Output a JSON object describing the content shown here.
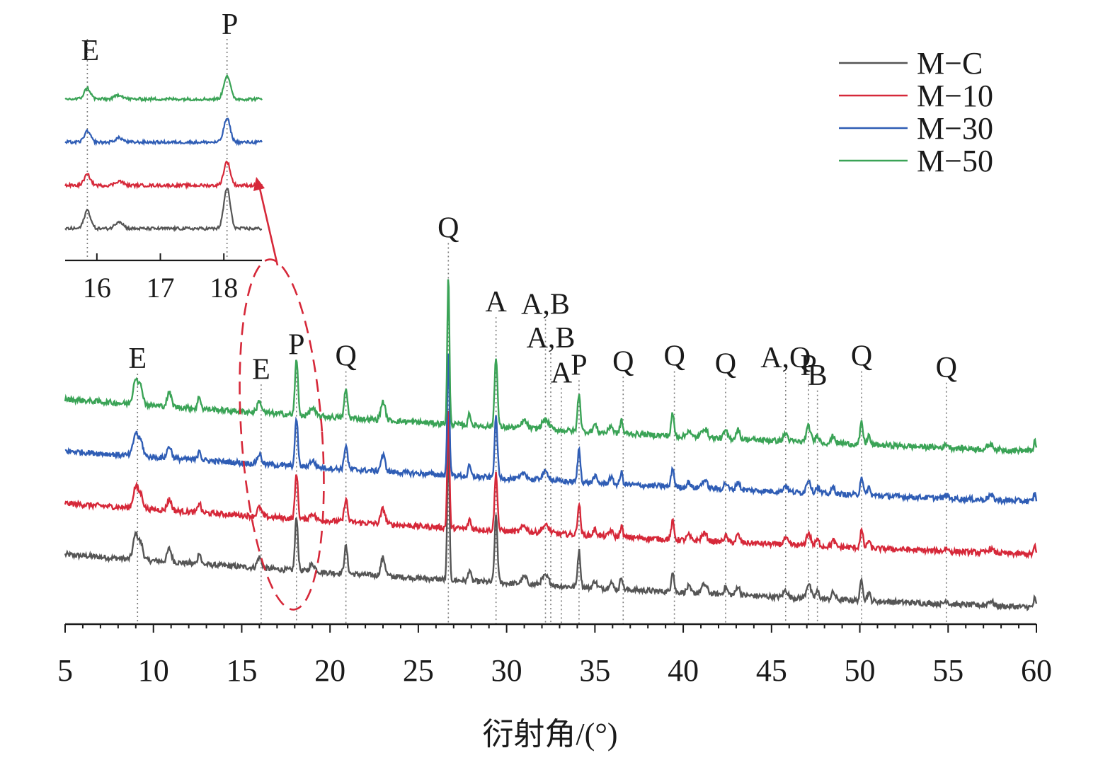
{
  "chart_data": {
    "type": "line",
    "title": "",
    "xlabel": "衍射角/(°)",
    "ylabel": "",
    "xlim": [
      5,
      60
    ],
    "x_ticks": [
      "5",
      "10",
      "15",
      "20",
      "25",
      "30",
      "35",
      "40",
      "45",
      "50",
      "55",
      "60"
    ],
    "legend": {
      "position": "top-right",
      "entries": [
        "M−C",
        "M−10",
        "M−30",
        "M−50"
      ]
    },
    "series": [
      {
        "name": "M−C",
        "color": "#555555",
        "baseline_start": 0.9,
        "baseline_end": 0.02,
        "peak_scale": 1.0
      },
      {
        "name": "M−10",
        "color": "#d62839",
        "baseline_start": 1.75,
        "baseline_end": 0.9,
        "peak_scale": 0.85
      },
      {
        "name": "M−30",
        "color": "#2f5db5",
        "baseline_start": 2.62,
        "baseline_end": 1.78,
        "peak_scale": 0.9
      },
      {
        "name": "M−50",
        "color": "#3aa356",
        "baseline_start": 3.48,
        "baseline_end": 2.62,
        "peak_scale": 1.05
      }
    ],
    "peaks": [
      {
        "x": 9.0,
        "h": 0.42,
        "w": 0.14
      },
      {
        "x": 9.3,
        "h": 0.25,
        "w": 0.12
      },
      {
        "x": 10.9,
        "h": 0.22,
        "w": 0.12
      },
      {
        "x": 12.6,
        "h": 0.2,
        "w": 0.08
      },
      {
        "x": 16.0,
        "h": 0.18,
        "w": 0.12
      },
      {
        "x": 18.1,
        "h": 0.9,
        "w": 0.08
      },
      {
        "x": 19.0,
        "h": 0.12,
        "w": 0.15
      },
      {
        "x": 20.9,
        "h": 0.45,
        "w": 0.09
      },
      {
        "x": 23.0,
        "h": 0.3,
        "w": 0.12
      },
      {
        "x": 26.7,
        "h": 2.35,
        "w": 0.06
      },
      {
        "x": 27.9,
        "h": 0.2,
        "w": 0.07
      },
      {
        "x": 29.4,
        "h": 1.12,
        "w": 0.08
      },
      {
        "x": 31.0,
        "h": 0.12,
        "w": 0.15
      },
      {
        "x": 32.2,
        "h": 0.15,
        "w": 0.2
      },
      {
        "x": 34.1,
        "h": 0.6,
        "w": 0.08
      },
      {
        "x": 35.0,
        "h": 0.12,
        "w": 0.1
      },
      {
        "x": 35.9,
        "h": 0.12,
        "w": 0.1
      },
      {
        "x": 36.5,
        "h": 0.22,
        "w": 0.07
      },
      {
        "x": 39.4,
        "h": 0.35,
        "w": 0.08
      },
      {
        "x": 40.3,
        "h": 0.1,
        "w": 0.1
      },
      {
        "x": 41.2,
        "h": 0.15,
        "w": 0.15
      },
      {
        "x": 42.4,
        "h": 0.12,
        "w": 0.1
      },
      {
        "x": 43.1,
        "h": 0.15,
        "w": 0.1
      },
      {
        "x": 45.8,
        "h": 0.12,
        "w": 0.12
      },
      {
        "x": 47.1,
        "h": 0.25,
        "w": 0.12
      },
      {
        "x": 47.6,
        "h": 0.12,
        "w": 0.1
      },
      {
        "x": 48.5,
        "h": 0.12,
        "w": 0.1
      },
      {
        "x": 50.1,
        "h": 0.35,
        "w": 0.08
      },
      {
        "x": 50.5,
        "h": 0.15,
        "w": 0.08
      },
      {
        "x": 54.9,
        "h": 0.06,
        "w": 0.1
      },
      {
        "x": 57.4,
        "h": 0.08,
        "w": 0.15
      },
      {
        "x": 59.9,
        "h": 0.15,
        "w": 0.06
      }
    ],
    "peak_labels": [
      {
        "text": "E",
        "x": 9.1,
        "top_y": 4.0
      },
      {
        "text": "E",
        "x": 16.1,
        "top_y": 3.82
      },
      {
        "text": "P",
        "x": 18.1,
        "top_y": 4.23
      },
      {
        "text": "Q",
        "x": 20.9,
        "top_y": 4.04
      },
      {
        "text": "Q",
        "x": 26.7,
        "top_y": 6.17
      },
      {
        "text": "A",
        "x": 29.4,
        "top_y": 4.94
      },
      {
        "text": "A,B",
        "x": 32.2,
        "top_y": 4.9
      },
      {
        "text": "A,B",
        "x": 32.5,
        "top_y": 4.34
      },
      {
        "text": "A",
        "x": 33.1,
        "top_y": 3.76
      },
      {
        "text": "P",
        "x": 34.1,
        "top_y": 3.89
      },
      {
        "text": "Q",
        "x": 36.6,
        "top_y": 3.95
      },
      {
        "text": "Q",
        "x": 39.5,
        "top_y": 4.04
      },
      {
        "text": "Q",
        "x": 42.4,
        "top_y": 3.91
      },
      {
        "text": "A,Q",
        "x": 45.8,
        "top_y": 4.01
      },
      {
        "text": "P",
        "x": 47.1,
        "top_y": 3.88
      },
      {
        "text": "B",
        "x": 47.6,
        "top_y": 3.72
      },
      {
        "text": "Q",
        "x": 50.1,
        "top_y": 4.04
      },
      {
        "text": "Q",
        "x": 54.9,
        "top_y": 3.85
      }
    ],
    "inset": {
      "xlim": [
        15.5,
        18.6
      ],
      "x_ticks": [
        "16",
        "17",
        "18"
      ],
      "peak_labels": [
        {
          "text": "E",
          "x": 15.85
        },
        {
          "text": "P",
          "x": 18.05
        }
      ],
      "peaks": [
        {
          "x": 15.85,
          "h": 0.25,
          "w": 0.05
        },
        {
          "x": 16.35,
          "h": 0.1,
          "w": 0.06
        },
        {
          "x": 18.05,
          "h": 0.55,
          "w": 0.05
        }
      ],
      "series": [
        {
          "name": "M−C",
          "color": "#555555",
          "base": 0.0,
          "peak_scale": 1.7
        },
        {
          "name": "M−10",
          "color": "#d62839",
          "base": 1.0,
          "peak_scale": 1.0
        },
        {
          "name": "M−30",
          "color": "#2f5db5",
          "base": 2.0,
          "peak_scale": 1.0
        },
        {
          "name": "M−50",
          "color": "#3aa356",
          "base": 3.0,
          "peak_scale": 1.0
        }
      ]
    }
  }
}
